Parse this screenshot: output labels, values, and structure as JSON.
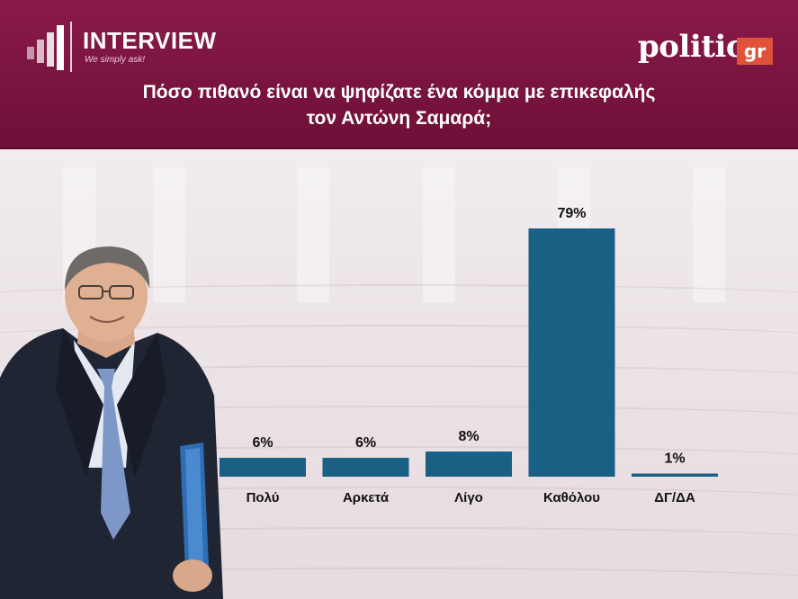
{
  "header": {
    "brand_name": "INTERVIEW",
    "brand_tagline": "We simply ask!",
    "publisher_name": "politic",
    "publisher_suffix": "gr",
    "title_line1": "Πόσο πιθανό είναι να ψηφίζατε ένα κόμμα με επικεφαλής",
    "title_line2": "τον Αντώνη Σαμαρά;"
  },
  "colors": {
    "header_bg": "#7a143f",
    "bar": "#1a5f84",
    "publisher_accent": "#e0533a"
  },
  "chart_data": {
    "type": "bar",
    "title": "Πόσο πιθανό είναι να ψηφίζατε ένα κόμμα με επικεφαλής τον Αντώνη Σαμαρά;",
    "categories": [
      "Πολύ",
      "Αρκετά",
      "Λίγο",
      "Καθόλου",
      "ΔΓ/ΔΑ"
    ],
    "values": [
      6,
      6,
      8,
      79,
      1
    ],
    "data_labels": [
      "6%",
      "6%",
      "8%",
      "79%",
      "1%"
    ],
    "unit": "%",
    "ylim": [
      0,
      100
    ],
    "grid": false,
    "legend": "none"
  }
}
